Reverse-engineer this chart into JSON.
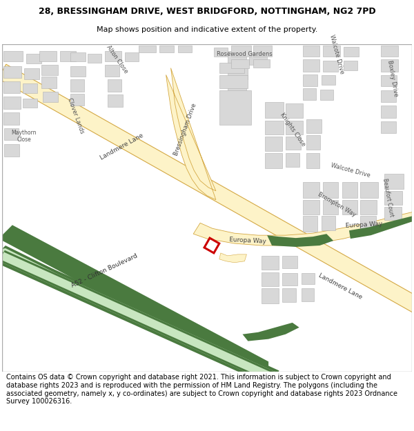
{
  "title_line1": "28, BRESSINGHAM DRIVE, WEST BRIDGFORD, NOTTINGHAM, NG2 7PD",
  "title_line2": "Map shows position and indicative extent of the property.",
  "footer_text": "Contains OS data © Crown copyright and database right 2021. This information is subject to Crown copyright and database rights 2023 and is reproduced with the permission of HM Land Registry. The polygons (including the associated geometry, namely x, y co-ordinates) are subject to Crown copyright and database rights 2023 Ordnance Survey 100026316.",
  "title_fontsize": 9,
  "subtitle_fontsize": 8,
  "footer_fontsize": 7,
  "bg_color": "#ffffff",
  "road_yellow_fill": "#fdf3c8",
  "road_yellow_edge": "#d4a843",
  "green_dark": "#4a7a3f",
  "green_light": "#c8e6c0",
  "building_color": "#d8d8d8",
  "building_edge": "#b0b0b0",
  "red_outline": "#cc0000",
  "map_bg": "#f8f8f5",
  "fig_width": 6.0,
  "fig_height": 6.25
}
